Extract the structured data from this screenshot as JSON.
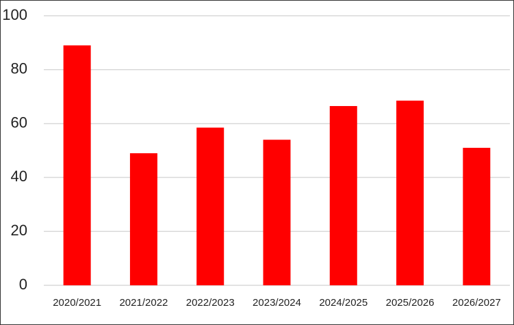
{
  "chart_data": {
    "type": "bar",
    "categories": [
      "2020/2021",
      "2021/2022",
      "2022/2023",
      "2023/2024",
      "2024/2025",
      "2025/2026",
      "2026/2027"
    ],
    "values": [
      89,
      49,
      58.5,
      54,
      66.5,
      68.5,
      51
    ],
    "color": "#ff0000",
    "ylim": [
      0,
      100
    ],
    "yticks": [
      0,
      20,
      40,
      60,
      80,
      100
    ],
    "grid": true
  }
}
